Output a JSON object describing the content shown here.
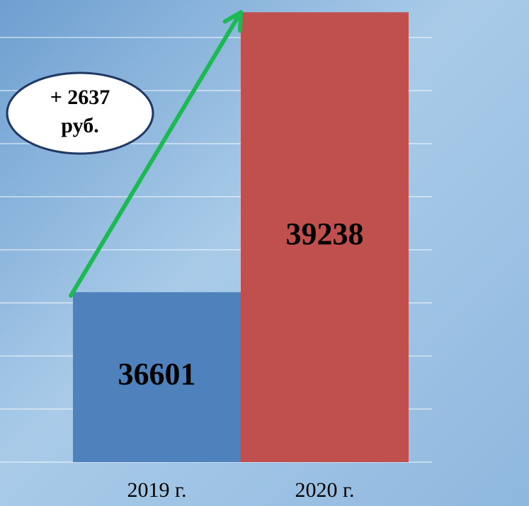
{
  "chart_data": {
    "type": "bar",
    "categories": [
      "2019 г.",
      "2020 г."
    ],
    "series": [
      {
        "values": [
          36601,
          39238
        ],
        "colors": [
          "#4f81bd",
          "#c0504d"
        ]
      }
    ],
    "annotation": "+ 2637 руб.",
    "ylim": [
      35000,
      39500
    ],
    "yticks": [
      35000,
      35500,
      36000,
      36500,
      37000,
      37500,
      38000,
      38500,
      39000
    ],
    "grid": true
  }
}
